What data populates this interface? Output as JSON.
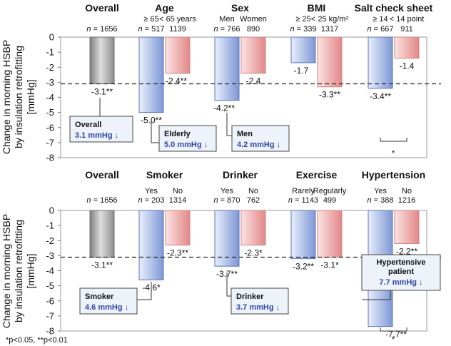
{
  "y_axis_label_lines": [
    "Change in morning HSBP",
    "by insulation retrofitting",
    "[mmHg]"
  ],
  "footnote": "*p<0.05, **p<0.01",
  "colors": {
    "overall": "#a6a6a6",
    "blue": "#b6c7ea",
    "red": "#f1b5b5",
    "value_blue": "#2e46a8"
  },
  "chart_data": [
    {
      "type": "bar",
      "panel": "top",
      "ylim": [
        -8,
        0
      ],
      "yticks": [
        0,
        -1,
        -2,
        -3,
        -4,
        -5,
        -6,
        -7,
        -8
      ],
      "reference_line": -3.1,
      "groups": [
        {
          "title": "Overall",
          "bars": [
            {
              "label": "",
              "n": "n = 1656",
              "value": -3.1,
              "text": "-3.1**",
              "color": "gray"
            }
          ]
        },
        {
          "title": "Age",
          "bars": [
            {
              "label": "≥ 65",
              "n": "n = 517",
              "value": -5.0,
              "text": "-5.0**",
              "color": "blue"
            },
            {
              "label": "< 65 years",
              "n": "1139",
              "value": -2.4,
              "text": "-2.4**",
              "color": "red"
            }
          ]
        },
        {
          "title": "Sex",
          "bars": [
            {
              "label": "Men",
              "n": "n = 766",
              "value": -4.2,
              "text": "-4.2**",
              "color": "blue"
            },
            {
              "label": "Women",
              "n": "890",
              "value": -2.4,
              "text": "-2.4",
              "color": "red"
            }
          ]
        },
        {
          "title": "BMI",
          "bars": [
            {
              "label": "≥ 25",
              "n": "n = 339",
              "value": -1.7,
              "text": "-1.7",
              "color": "blue"
            },
            {
              "label": "< 25 kg/m²",
              "n": "1317",
              "value": -3.3,
              "text": "-3.3**",
              "color": "red"
            }
          ]
        },
        {
          "title": "Salt check sheet",
          "bars": [
            {
              "label": "≥ 14",
              "n": "n = 667",
              "value": -3.4,
              "text": "-3.4**",
              "color": "blue"
            },
            {
              "label": "< 14 point",
              "n": "911",
              "value": -1.4,
              "text": "-1.4",
              "color": "red"
            }
          ]
        }
      ],
      "callouts": [
        {
          "title": "Overall",
          "value": "3.1 mmHg ↓"
        },
        {
          "title": "Elderly",
          "value": "5.0 mmHg ↓"
        },
        {
          "title": "Men",
          "value": "4.2 mmHg ↓"
        }
      ],
      "bracket_sig": "*"
    },
    {
      "type": "bar",
      "panel": "bottom",
      "ylim": [
        -8,
        0
      ],
      "yticks": [
        0,
        -1,
        -2,
        -3,
        -4,
        -5,
        -6,
        -7,
        -8
      ],
      "reference_line": -3.1,
      "groups": [
        {
          "title": "Overall",
          "bars": [
            {
              "label": "",
              "n": "n = 1656",
              "value": -3.1,
              "text": "-3.1**",
              "color": "gray"
            }
          ]
        },
        {
          "title": "Smoker",
          "bars": [
            {
              "label": "Yes",
              "n": "n = 203",
              "value": -4.6,
              "text": "-4.6*",
              "color": "blue"
            },
            {
              "label": "No",
              "n": "1314",
              "value": -2.3,
              "text": "-2.3**",
              "color": "red"
            }
          ]
        },
        {
          "title": "Drinker",
          "bars": [
            {
              "label": "Yes",
              "n": "n = 870",
              "value": -3.7,
              "text": "-3.7**",
              "color": "blue"
            },
            {
              "label": "No",
              "n": "762",
              "value": -2.3,
              "text": "-2.3*",
              "color": "red"
            }
          ]
        },
        {
          "title": "Exercise",
          "bars": [
            {
              "label": "Rarely",
              "n": "n = 1143",
              "value": -3.2,
              "text": "-3.2**",
              "color": "blue"
            },
            {
              "label": "Regularly",
              "n": "499",
              "value": -3.1,
              "text": "-3.1*",
              "color": "red"
            }
          ]
        },
        {
          "title": "Hypertension",
          "bars": [
            {
              "label": "Yes",
              "n": "n = 388",
              "value": -7.7,
              "text": "-7.7**",
              "color": "blue"
            },
            {
              "label": "No",
              "n": "1216",
              "value": -2.2,
              "text": "-2.2**",
              "color": "red"
            }
          ]
        }
      ],
      "callouts": [
        {
          "title": "Smoker",
          "value": "4.6 mmHg ↓"
        },
        {
          "title": "Drinker",
          "value": "3.7 mmHg ↓"
        },
        {
          "title": "Hypertensive patient",
          "value": "7.7 mmHg ↓"
        }
      ],
      "bracket_sig": "*"
    }
  ]
}
